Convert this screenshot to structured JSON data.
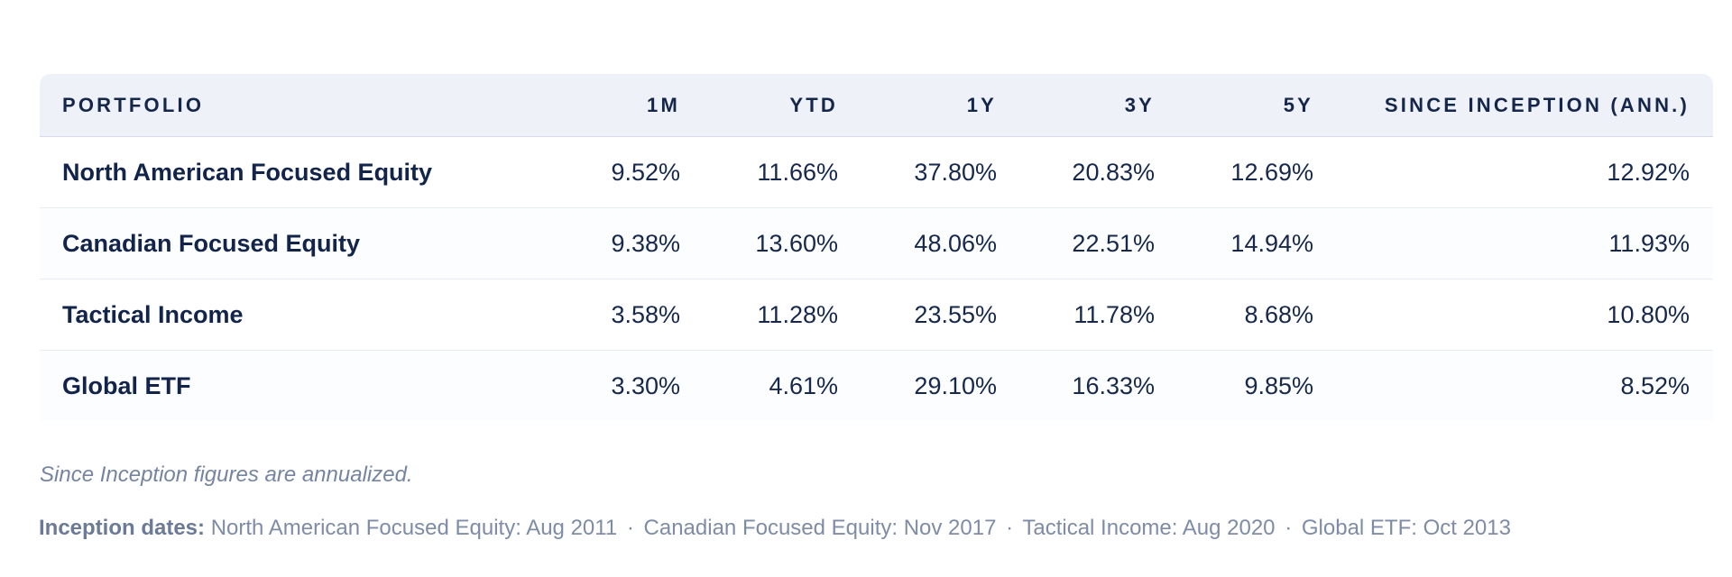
{
  "table": {
    "headers": [
      "PORTFOLIO",
      "1M",
      "YTD",
      "1Y",
      "3Y",
      "5Y",
      "SINCE INCEPTION (ANN.)"
    ],
    "rows": [
      [
        "North American Focused Equity",
        "9.52%",
        "11.66%",
        "37.80%",
        "20.83%",
        "12.69%",
        "12.92%"
      ],
      [
        "Canadian Focused Equity",
        "9.38%",
        "13.60%",
        "48.06%",
        "22.51%",
        "14.94%",
        "11.93%"
      ],
      [
        "Tactical Income",
        "3.58%",
        "11.28%",
        "23.55%",
        "11.78%",
        "8.68%",
        "10.80%"
      ],
      [
        "Global ETF",
        "3.30%",
        "4.61%",
        "29.10%",
        "16.33%",
        "9.85%",
        "8.52%"
      ]
    ]
  },
  "footnote": "Since Inception figures are annualized.",
  "inception": {
    "label": "Inception dates:",
    "items": [
      "North American Focused Equity: Aug 2011",
      "Canadian Focused Equity: Nov 2017",
      "Tactical Income: Aug 2020",
      "Global ETF: Oct 2013"
    ],
    "separator": "·"
  },
  "colors": {
    "header_bg": "#eef1f7",
    "text_primary": "#14264a",
    "text_muted": "#7584a0"
  }
}
